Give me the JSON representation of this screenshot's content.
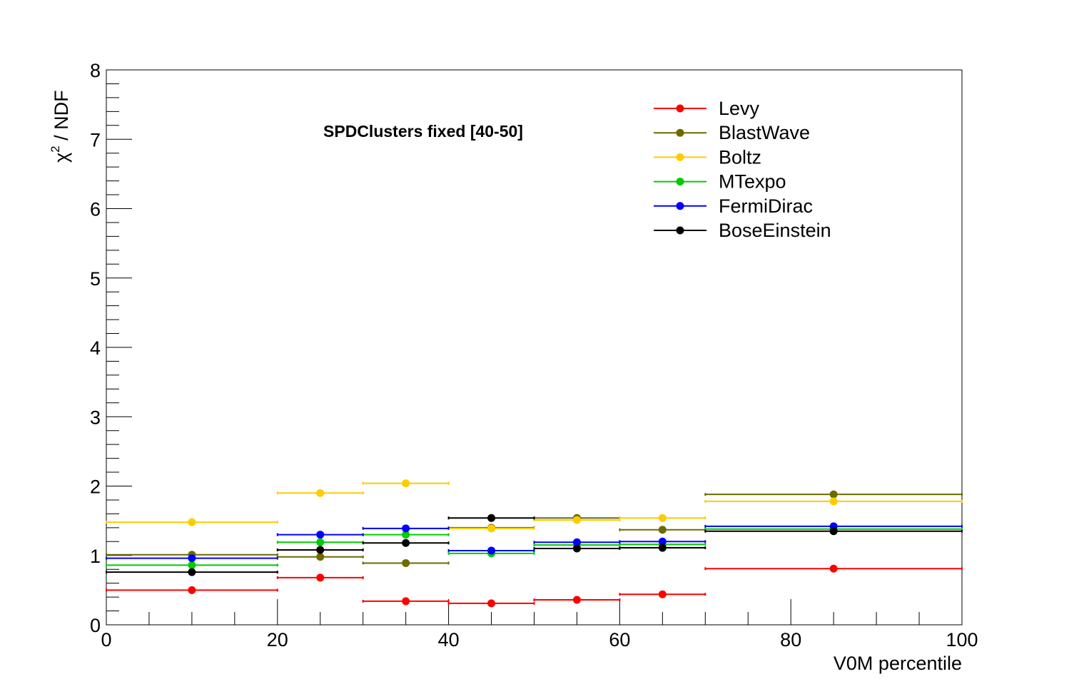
{
  "chart_data": {
    "type": "scatter",
    "title": "SPDClusters fixed [40-50]",
    "xlabel": "V0M percentile",
    "ylabel": "χ² / NDF",
    "ylabel_base": "χ",
    "ylabel_sup": "2",
    "ylabel_rest": " / NDF",
    "xlim": [
      0,
      100
    ],
    "ylim": [
      0,
      8
    ],
    "x_ticks": [
      "0",
      "20",
      "40",
      "60",
      "80",
      "100"
    ],
    "y_ticks": [
      "0",
      "1",
      "2",
      "3",
      "4",
      "5",
      "6",
      "7",
      "8"
    ],
    "legend_position": "top-right",
    "bins": [
      {
        "low": 0,
        "high": 20,
        "center": 10
      },
      {
        "low": 20,
        "high": 30,
        "center": 25
      },
      {
        "low": 30,
        "high": 40,
        "center": 35
      },
      {
        "low": 40,
        "high": 50,
        "center": 45
      },
      {
        "low": 50,
        "high": 60,
        "center": 55
      },
      {
        "low": 60,
        "high": 70,
        "center": 65
      },
      {
        "low": 70,
        "high": 100,
        "center": 85
      }
    ],
    "series": [
      {
        "name": "Levy",
        "color": "#ff0000",
        "values": [
          0.5,
          0.68,
          0.34,
          0.31,
          0.36,
          0.44,
          0.81
        ]
      },
      {
        "name": "BlastWave",
        "color": "#6b6b00",
        "values": [
          1.01,
          0.98,
          0.89,
          1.4,
          1.54,
          1.37,
          1.88
        ]
      },
      {
        "name": "Boltz",
        "color": "#ffcc00",
        "values": [
          1.48,
          1.9,
          2.04,
          1.39,
          1.51,
          1.54,
          1.78
        ]
      },
      {
        "name": "MTexpo",
        "color": "#00cc00",
        "values": [
          0.86,
          1.19,
          1.3,
          1.03,
          1.15,
          1.16,
          1.38
        ]
      },
      {
        "name": "FermiDirac",
        "color": "#0000ff",
        "values": [
          0.96,
          1.3,
          1.39,
          1.07,
          1.19,
          1.2,
          1.42
        ]
      },
      {
        "name": "BoseEinstein",
        "color": "#000000",
        "values": [
          0.76,
          1.08,
          1.18,
          1.54,
          1.1,
          1.11,
          1.35
        ]
      }
    ]
  }
}
